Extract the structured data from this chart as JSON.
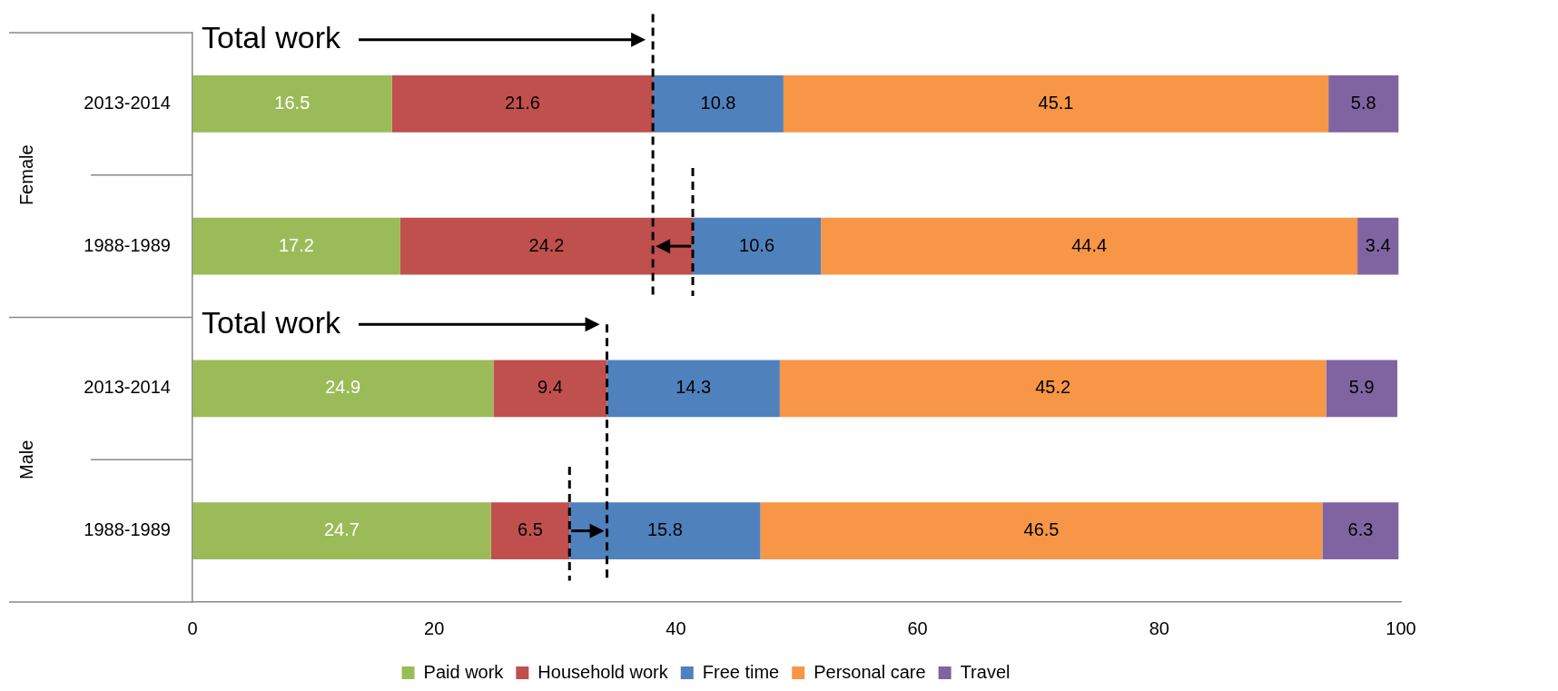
{
  "chart_data": {
    "type": "bar",
    "orientation": "horizontal",
    "stacked": true,
    "categories": [
      "2013-2014",
      "1988-1989",
      "2013-2014",
      "1988-1989"
    ],
    "series": [
      {
        "name": "Paid work",
        "color": "#9bbb59",
        "values": [
          16.5,
          17.2,
          24.9,
          24.7
        ]
      },
      {
        "name": "Household work",
        "color": "#c0504d",
        "values": [
          21.6,
          24.2,
          9.4,
          6.5
        ]
      },
      {
        "name": "Free time",
        "color": "#4f81bd",
        "values": [
          10.8,
          10.6,
          14.3,
          15.8
        ]
      },
      {
        "name": "Personal care",
        "color": "#f79646",
        "values": [
          45.1,
          44.4,
          45.2,
          46.5
        ]
      },
      {
        "name": "Travel",
        "color": "#8064a2",
        "values": [
          5.8,
          3.4,
          5.9,
          6.3
        ]
      }
    ],
    "xlim": [
      0,
      100
    ],
    "xticks": [
      0,
      20,
      40,
      60,
      80,
      100
    ],
    "data_labels": true,
    "legend": "bottom",
    "grid": false,
    "ref_lines": [
      {
        "axis": "x",
        "value": 38.1,
        "color": "#000000",
        "line_style": "dashed"
      },
      {
        "axis": "x",
        "value": 41.4,
        "color": "#000000",
        "line_style": "dashed"
      },
      {
        "axis": "x",
        "value": 34.3,
        "color": "#000000",
        "line_style": "dashed"
      },
      {
        "axis": "x",
        "value": 31.2,
        "color": "#000000",
        "line_style": "dashed"
      }
    ],
    "annotations": [
      "Total work",
      "Total work",
      "Female",
      "Male"
    ]
  }
}
